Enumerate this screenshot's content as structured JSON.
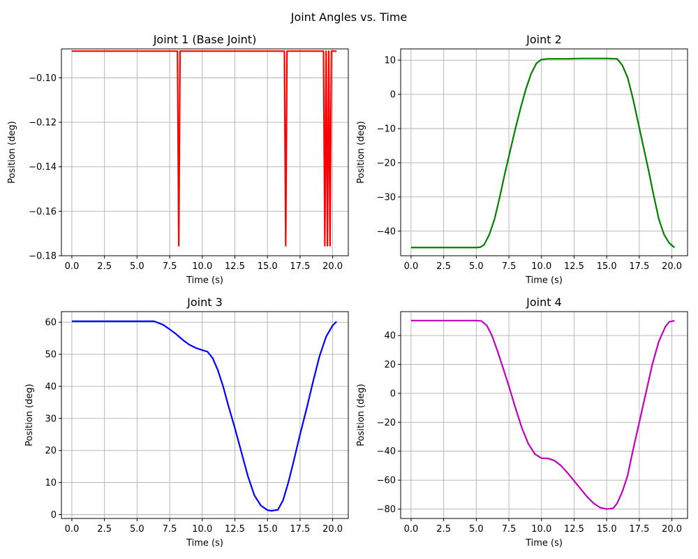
{
  "figure": {
    "title": "Joint Angles vs. Time"
  },
  "chart_data": [
    {
      "type": "line",
      "title": "Joint 1 (Base Joint)",
      "xlabel": "Time (s)",
      "ylabel": "Position (deg)",
      "xlim": [
        -0.8,
        21.2
      ],
      "ylim": [
        -0.18,
        -0.087
      ],
      "xticks": [
        0,
        2.5,
        5,
        7.5,
        10,
        12.5,
        15,
        17.5,
        20
      ],
      "xtick_labels": [
        "0.0",
        "2.5",
        "5.0",
        "7.5",
        "10.0",
        "12.5",
        "15.0",
        "17.5",
        "20.0"
      ],
      "yticks": [
        -0.18,
        -0.16,
        -0.14,
        -0.12,
        -0.1
      ],
      "ytick_labels": [
        "−0.18",
        "−0.16",
        "−0.14",
        "−0.12",
        "−0.10"
      ],
      "grid": true,
      "series": [
        {
          "color": "#ff0000",
          "x": [
            0,
            8.1,
            8.2,
            8.3,
            16.3,
            16.4,
            16.5,
            19.3,
            19.4,
            19.5,
            19.6,
            19.7,
            19.8,
            19.9,
            20.0,
            20.1,
            20.3
          ],
          "y": [
            -0.088,
            -0.088,
            -0.1755,
            -0.088,
            -0.088,
            -0.1755,
            -0.088,
            -0.088,
            -0.1755,
            -0.088,
            -0.1755,
            -0.088,
            -0.1755,
            -0.088,
            -0.088,
            -0.088,
            -0.088
          ]
        }
      ]
    },
    {
      "type": "line",
      "title": "Joint 2",
      "xlabel": "Time (s)",
      "ylabel": "Position (deg)",
      "xlim": [
        -0.8,
        21.2
      ],
      "ylim": [
        -47.2,
        13.3
      ],
      "xticks": [
        0,
        2.5,
        5,
        7.5,
        10,
        12.5,
        15,
        17.5,
        20
      ],
      "xtick_labels": [
        "0.0",
        "2.5",
        "5.0",
        "7.5",
        "10.0",
        "12.5",
        "15.0",
        "17.5",
        "20.0"
      ],
      "yticks": [
        -40,
        -30,
        -20,
        -10,
        0,
        10
      ],
      "ytick_labels": [
        "−40",
        "−30",
        "−20",
        "−10",
        "0",
        "10"
      ],
      "grid": true,
      "series": [
        {
          "color": "#008000",
          "x": [
            0,
            5.0,
            5.3,
            5.6,
            6.0,
            6.4,
            6.8,
            7.2,
            7.6,
            8.0,
            8.4,
            8.8,
            9.2,
            9.6,
            10.0,
            10.5,
            12.0,
            13.0,
            15.0,
            15.8,
            16.2,
            16.6,
            17.0,
            17.4,
            17.8,
            18.2,
            18.6,
            19.0,
            19.4,
            19.8,
            20.2
          ],
          "y": [
            -44.8,
            -44.8,
            -44.7,
            -44.0,
            -41.0,
            -36.5,
            -30.0,
            -23.0,
            -16.5,
            -10.0,
            -4.0,
            1.5,
            6.0,
            9.0,
            10.2,
            10.4,
            10.4,
            10.5,
            10.5,
            10.4,
            8.5,
            5.0,
            -1.0,
            -8.0,
            -15.0,
            -22.0,
            -29.5,
            -36.5,
            -41.0,
            -43.5,
            -44.8
          ]
        }
      ]
    },
    {
      "type": "line",
      "title": "Joint 3",
      "xlabel": "Time (s)",
      "ylabel": "Position (deg)",
      "xlim": [
        -0.8,
        21.2
      ],
      "ylim": [
        -1.2,
        63.3
      ],
      "xticks": [
        0,
        2.5,
        5,
        7.5,
        10,
        12.5,
        15,
        17.5,
        20
      ],
      "xtick_labels": [
        "0.0",
        "2.5",
        "5.0",
        "7.5",
        "10.0",
        "12.5",
        "15.0",
        "17.5",
        "20.0"
      ],
      "yticks": [
        0,
        10,
        20,
        30,
        40,
        50,
        60
      ],
      "ytick_labels": [
        "0",
        "10",
        "20",
        "30",
        "40",
        "50",
        "60"
      ],
      "grid": true,
      "series": [
        {
          "color": "#0000ff",
          "x": [
            0,
            3.0,
            6.3,
            7.0,
            7.5,
            8.0,
            8.5,
            9.0,
            9.5,
            10.0,
            10.4,
            10.8,
            11.2,
            11.6,
            12.0,
            12.5,
            13.0,
            13.5,
            14.0,
            14.5,
            15.0,
            15.3,
            15.8,
            16.2,
            16.6,
            17.0,
            17.5,
            18.0,
            18.5,
            19.0,
            19.5,
            20.0,
            20.3
          ],
          "y": [
            60.3,
            60.3,
            60.3,
            59.2,
            57.8,
            56.3,
            54.5,
            53.0,
            52.0,
            51.3,
            50.8,
            48.8,
            45.0,
            40.0,
            34.0,
            27.0,
            19.5,
            12.0,
            6.0,
            2.8,
            1.4,
            1.2,
            1.5,
            4.5,
            10.0,
            16.5,
            25.0,
            33.0,
            41.5,
            49.5,
            55.5,
            59.0,
            60.2
          ]
        }
      ]
    },
    {
      "type": "line",
      "title": "Joint 4",
      "xlabel": "Time (s)",
      "ylabel": "Position (deg)",
      "xlim": [
        -0.8,
        21.2
      ],
      "ylim": [
        -86.5,
        56.5
      ],
      "xticks": [
        0,
        2.5,
        5,
        7.5,
        10,
        12.5,
        15,
        17.5,
        20
      ],
      "xtick_labels": [
        "0.0",
        "2.5",
        "5.0",
        "7.5",
        "10.0",
        "12.5",
        "15.0",
        "17.5",
        "20.0"
      ],
      "yticks": [
        -80,
        -60,
        -40,
        -20,
        0,
        20,
        40
      ],
      "ytick_labels": [
        "−80",
        "−60",
        "−40",
        "−20",
        "0",
        "20",
        "40"
      ],
      "grid": true,
      "series": [
        {
          "color": "#bf00bf",
          "x": [
            0,
            5.0,
            5.4,
            5.8,
            6.2,
            6.6,
            7.0,
            7.5,
            8.0,
            8.5,
            9.0,
            9.5,
            10.0,
            10.5,
            11.0,
            11.5,
            12.0,
            12.5,
            13.0,
            13.5,
            14.0,
            14.5,
            15.0,
            15.5,
            15.8,
            16.2,
            16.6,
            17.0,
            17.5,
            18.0,
            18.5,
            19.0,
            19.5,
            19.8,
            20.2
          ],
          "y": [
            50.3,
            50.3,
            50.0,
            47.0,
            40.0,
            30.0,
            19.0,
            5.0,
            -10.0,
            -24.0,
            -35.0,
            -42.0,
            -44.8,
            -45.0,
            -46.5,
            -50.0,
            -55.0,
            -60.5,
            -66.0,
            -71.5,
            -76.0,
            -79.0,
            -80.0,
            -79.5,
            -76.0,
            -68.0,
            -57.0,
            -40.0,
            -20.0,
            0.0,
            20.0,
            36.0,
            46.0,
            49.5,
            50.2
          ]
        }
      ]
    }
  ]
}
